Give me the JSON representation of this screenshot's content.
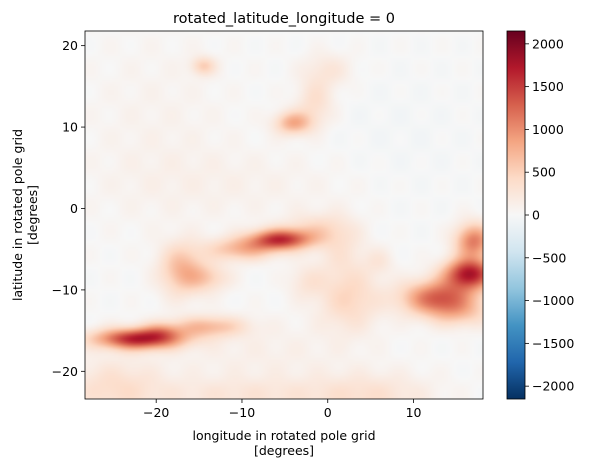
{
  "chart_data": {
    "type": "heatmap",
    "title": "rotated_latitude_longitude = 0",
    "xlabel_line1": "longitude in rotated pole grid",
    "xlabel_line2": "[degrees]",
    "ylabel_line1": "latitude in rotated pole grid",
    "ylabel_line2": "[degrees]",
    "xlim": [
      -28.3,
      18.1
    ],
    "ylim": [
      -23.4,
      21.8
    ],
    "xticks": [
      -20,
      -10,
      0,
      10
    ],
    "xtick_labels": [
      "−20",
      "−10",
      "0",
      "10"
    ],
    "yticks": [
      -20,
      -10,
      0,
      10,
      20
    ],
    "ytick_labels": [
      "−20",
      "−10",
      "0",
      "10",
      "20"
    ],
    "colormap": "RdBu_r",
    "colormap_stops": [
      "#053061",
      "#2166ac",
      "#4393c3",
      "#92c5de",
      "#d1e5f0",
      "#f7f7f7",
      "#fddbc7",
      "#f4a582",
      "#d6604d",
      "#b2182b",
      "#67001f"
    ],
    "colorbar_range": [
      -2150,
      2150
    ],
    "colorbar_ticks": [
      2000,
      1500,
      1000,
      500,
      0,
      -500,
      -1000,
      -1500,
      -2000
    ],
    "colorbar_tick_labels": [
      "2000",
      "1500",
      "1000",
      "500",
      "0",
      "−500",
      "−1000",
      "−1500",
      "−2000"
    ],
    "features": [
      {
        "x": -22.0,
        "y": -16.0,
        "sx": 3.5,
        "sy": 0.9,
        "v": 1700
      },
      {
        "x": -19.5,
        "y": -15.0,
        "sx": 1.5,
        "sy": 0.8,
        "v": 400
      },
      {
        "x": -14.0,
        "y": -14.5,
        "sx": 3.0,
        "sy": 0.9,
        "v": 650
      },
      {
        "x": -17.0,
        "y": -7.5,
        "sx": 1.8,
        "sy": 2.2,
        "v": 700
      },
      {
        "x": -14.0,
        "y": -8.5,
        "sx": 1.8,
        "sy": 1.2,
        "v": 450
      },
      {
        "x": -5.5,
        "y": -3.8,
        "sx": 2.5,
        "sy": 0.9,
        "v": 1500
      },
      {
        "x": -10.0,
        "y": -5.0,
        "sx": 2.8,
        "sy": 1.0,
        "v": 700
      },
      {
        "x": -1.5,
        "y": -2.5,
        "sx": 2.5,
        "sy": 1.3,
        "v": 350
      },
      {
        "x": 1.5,
        "y": -4.5,
        "sx": 2.0,
        "sy": 2.5,
        "v": 250
      },
      {
        "x": -2.5,
        "y": -9.0,
        "sx": 1.5,
        "sy": 1.5,
        "v": 250
      },
      {
        "x": 2.5,
        "y": -11.0,
        "sx": 2.5,
        "sy": 2.8,
        "v": 450
      },
      {
        "x": 6.0,
        "y": -6.5,
        "sx": 1.2,
        "sy": 1.2,
        "v": 200
      },
      {
        "x": 13.0,
        "y": -11.0,
        "sx": 3.0,
        "sy": 1.5,
        "v": 1300
      },
      {
        "x": 16.5,
        "y": -8.0,
        "sx": 2.0,
        "sy": 1.3,
        "v": 1700
      },
      {
        "x": 17.0,
        "y": -4.0,
        "sx": 1.5,
        "sy": 1.5,
        "v": 1100
      },
      {
        "x": 15.5,
        "y": -13.0,
        "sx": 2.5,
        "sy": 1.2,
        "v": 400
      },
      {
        "x": -4.0,
        "y": 10.5,
        "sx": 1.5,
        "sy": 1.0,
        "v": 800
      },
      {
        "x": -1.5,
        "y": 13.0,
        "sx": 1.5,
        "sy": 2.0,
        "v": 350
      },
      {
        "x": 0.0,
        "y": 17.0,
        "sx": 2.0,
        "sy": 1.5,
        "v": 250
      },
      {
        "x": -14.5,
        "y": 17.5,
        "sx": 1.0,
        "sy": 0.8,
        "v": 500
      },
      {
        "x": -25.0,
        "y": -22.0,
        "sx": 4.0,
        "sy": 2.5,
        "v": 350
      },
      {
        "x": -10.0,
        "y": -23.0,
        "sx": 8.0,
        "sy": 1.5,
        "v": 250
      },
      {
        "x": 5.0,
        "y": -23.0,
        "sx": 5.0,
        "sy": 2.0,
        "v": 300
      },
      {
        "x": -8.0,
        "y": -18.0,
        "sx": 8.0,
        "sy": 3.0,
        "v": 120
      },
      {
        "x": -10.0,
        "y": 3.0,
        "sx": 10.0,
        "sy": 3.0,
        "v": 90
      },
      {
        "x": -20.0,
        "y": 10.0,
        "sx": 6.0,
        "sy": 8.0,
        "v": 80
      },
      {
        "x": 8.0,
        "y": 8.0,
        "sx": 6.0,
        "sy": 6.0,
        "v": -40
      }
    ]
  }
}
